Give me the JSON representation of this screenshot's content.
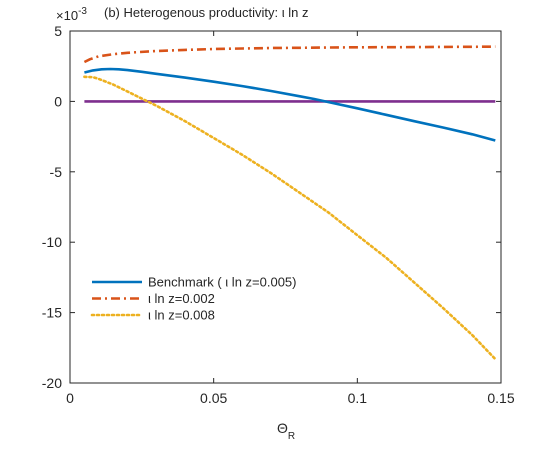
{
  "chart_data": {
    "type": "line",
    "title": "(b) Heterogenous productivity:   ι ln z",
    "exponent_label": "×10",
    "exponent_power": "-3",
    "xlabel": "Θ",
    "xlabel_sub": "R",
    "ylabel": "",
    "xlim": [
      0,
      0.15
    ],
    "ylim": [
      -20,
      5
    ],
    "xticks": [
      0,
      0.05,
      0.1,
      0.15
    ],
    "xtick_labels": [
      "0",
      "0.05",
      "0.1",
      "0.15"
    ],
    "yticks": [
      5,
      0,
      -5,
      -10,
      -15,
      -20
    ],
    "ytick_labels": [
      "5",
      "0",
      "-5",
      "-10",
      "-15",
      "-20"
    ],
    "grid": false,
    "legend_placement": "lower-left",
    "series": [
      {
        "name": "Benchmark ( ι ln z=0.005)",
        "color": "#0072BD",
        "dash": "solid",
        "x": [
          0.005,
          0.008,
          0.011,
          0.014,
          0.017,
          0.02,
          0.025,
          0.03,
          0.04,
          0.05,
          0.06,
          0.07,
          0.08,
          0.085,
          0.09,
          0.1,
          0.11,
          0.12,
          0.13,
          0.14,
          0.148
        ],
        "values": [
          2.05,
          2.2,
          2.28,
          2.3,
          2.28,
          2.22,
          2.1,
          1.96,
          1.69,
          1.4,
          1.09,
          0.74,
          0.36,
          0.17,
          -0.05,
          -0.49,
          -0.95,
          -1.41,
          -1.86,
          -2.34,
          -2.78
        ]
      },
      {
        "name": "ι ln z=0.002",
        "color": "#D95319",
        "dash": "dashdot",
        "x": [
          0.005,
          0.007,
          0.01,
          0.015,
          0.02,
          0.03,
          0.04,
          0.05,
          0.06,
          0.07,
          0.08,
          0.09,
          0.1,
          0.11,
          0.12,
          0.13,
          0.14,
          0.148
        ],
        "values": [
          2.8,
          3.0,
          3.2,
          3.35,
          3.45,
          3.58,
          3.66,
          3.72,
          3.76,
          3.79,
          3.81,
          3.83,
          3.84,
          3.85,
          3.86,
          3.87,
          3.88,
          3.89
        ]
      },
      {
        "name": "ι ln z=0.008",
        "color": "#EDB120",
        "dash": "dotted",
        "x": [
          0.005,
          0.008,
          0.01,
          0.015,
          0.02,
          0.025,
          0.03,
          0.04,
          0.05,
          0.06,
          0.07,
          0.08,
          0.09,
          0.1,
          0.11,
          0.12,
          0.13,
          0.14,
          0.148
        ],
        "values": [
          1.75,
          1.72,
          1.6,
          1.2,
          0.7,
          0.2,
          -0.3,
          -1.4,
          -2.6,
          -3.8,
          -5.1,
          -6.5,
          -7.9,
          -9.5,
          -11.1,
          -12.9,
          -14.7,
          -16.6,
          -18.3
        ]
      },
      {
        "name": "",
        "color": "#7E2F8E",
        "dash": "solid",
        "x": [
          0.005,
          0.148
        ],
        "values": [
          0,
          0
        ]
      }
    ]
  }
}
